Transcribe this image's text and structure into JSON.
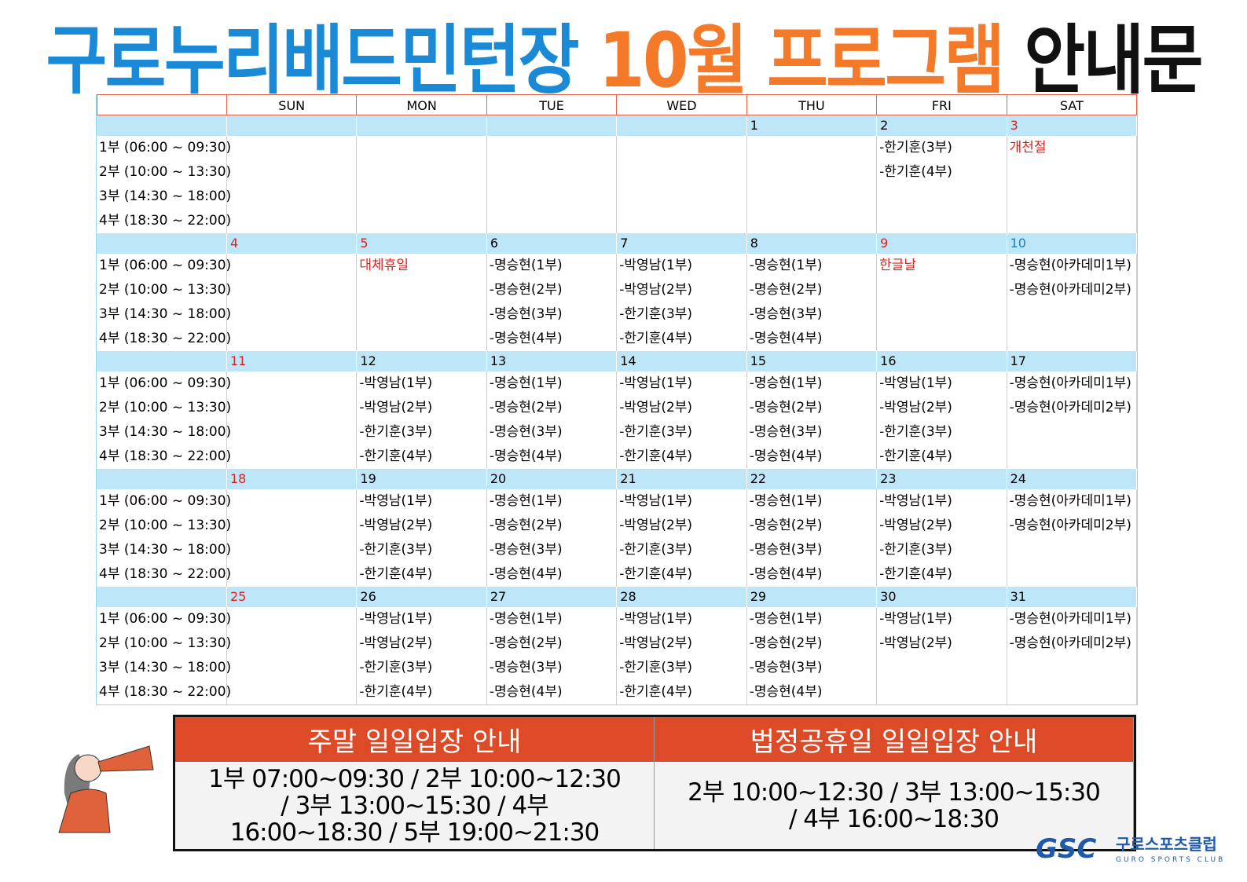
{
  "title": {
    "place": "구로누리배드민턴장",
    "program": "10월 프로그램",
    "notice": "안내문"
  },
  "weekdays": [
    "SUN",
    "MON",
    "TUE",
    "WED",
    "THU",
    "FRI",
    "SAT"
  ],
  "slots": [
    "1부 (06:00 ~ 09:30)",
    "2부 (10:00 ~ 13:30)",
    "3부 (14:30 ~ 18:00)",
    "4부 (18:30 ~ 22:00)"
  ],
  "red_days": [
    3,
    4,
    5,
    9,
    11,
    18,
    25
  ],
  "blue_days": [
    10
  ],
  "weeks": [
    {
      "dates": [
        null,
        null,
        null,
        null,
        1,
        2,
        3
      ],
      "cells": [
        [],
        [],
        [],
        [],
        [],
        [
          "-한기훈(3부)",
          "-한기훈(4부)"
        ],
        [
          {
            "text": "개천절",
            "holiday": true
          }
        ]
      ]
    },
    {
      "dates": [
        4,
        5,
        6,
        7,
        8,
        9,
        10
      ],
      "cells": [
        [],
        [
          {
            "text": "대체휴일",
            "holiday": true
          }
        ],
        [
          "-명승현(1부)",
          "-명승현(2부)",
          "-명승현(3부)",
          "-명승현(4부)"
        ],
        [
          "-박영남(1부)",
          "-박영남(2부)",
          "-한기훈(3부)",
          "-한기훈(4부)"
        ],
        [
          "-명승현(1부)",
          "-명승현(2부)",
          "-명승현(3부)",
          "-명승현(4부)"
        ],
        [
          {
            "text": "한글날",
            "holiday": true
          }
        ],
        [
          "-명승현(아카데미1부)",
          "-명승현(아카데미2부)"
        ]
      ]
    },
    {
      "dates": [
        11,
        12,
        13,
        14,
        15,
        16,
        17
      ],
      "cells": [
        [],
        [
          "-박영남(1부)",
          "-박영남(2부)",
          "-한기훈(3부)",
          "-한기훈(4부)"
        ],
        [
          "-명승현(1부)",
          "-명승현(2부)",
          "-명승현(3부)",
          "-명승현(4부)"
        ],
        [
          "-박영남(1부)",
          "-박영남(2부)",
          "-한기훈(3부)",
          "-한기훈(4부)"
        ],
        [
          "-명승현(1부)",
          "-명승현(2부)",
          "-명승현(3부)",
          "-명승현(4부)"
        ],
        [
          "-박영남(1부)",
          "-박영남(2부)",
          "-한기훈(3부)",
          "-한기훈(4부)"
        ],
        [
          "-명승현(아카데미1부)",
          "-명승현(아카데미2부)"
        ]
      ]
    },
    {
      "dates": [
        18,
        19,
        20,
        21,
        22,
        23,
        24
      ],
      "cells": [
        [],
        [
          "-박영남(1부)",
          "-박영남(2부)",
          "-한기훈(3부)",
          "-한기훈(4부)"
        ],
        [
          "-명승현(1부)",
          "-명승현(2부)",
          "-명승현(3부)",
          "-명승현(4부)"
        ],
        [
          "-박영남(1부)",
          "-박영남(2부)",
          "-한기훈(3부)",
          "-한기훈(4부)"
        ],
        [
          "-명승현(1부)",
          "-명승현(2부)",
          "-명승현(3부)",
          "-명승현(4부)"
        ],
        [
          "-박영남(1부)",
          "-박영남(2부)",
          "-한기훈(3부)",
          "-한기훈(4부)"
        ],
        [
          "-명승현(아카데미1부)",
          "-명승현(아카데미2부)"
        ]
      ]
    },
    {
      "dates": [
        25,
        26,
        27,
        28,
        29,
        30,
        31
      ],
      "cells": [
        [],
        [
          "-박영남(1부)",
          "-박영남(2부)",
          "-한기훈(3부)",
          "-한기훈(4부)"
        ],
        [
          "-명승현(1부)",
          "-명승현(2부)",
          "-명승현(3부)",
          "-명승현(4부)"
        ],
        [
          "-박영남(1부)",
          "-박영남(2부)",
          "-한기훈(3부)",
          "-한기훈(4부)"
        ],
        [
          "-명승현(1부)",
          "-명승현(2부)",
          "-명승현(3부)",
          "-명승현(4부)"
        ],
        [
          "-박영남(1부)",
          "-박영남(2부)"
        ],
        [
          "-명승현(아카데미1부)",
          "-명승현(아카데미2부)"
        ]
      ]
    }
  ],
  "notices": [
    {
      "title": "주말 일일입장 안내",
      "body": "1부 07:00~09:30 / 2부 10:00~12:30 / 3부 13:00~15:30 / 4부 16:00~18:30 / 5부 19:00~21:30"
    },
    {
      "title": "법정공휴일 일일입장 안내",
      "body": "2부 10:00~12:30 / 3부 13:00~15:30 / 4부 16:00~18:30"
    }
  ],
  "logo": {
    "abbr": "GSC",
    "name": "구로스포츠클럽",
    "sub": "GURO SPORTS CLUB"
  }
}
